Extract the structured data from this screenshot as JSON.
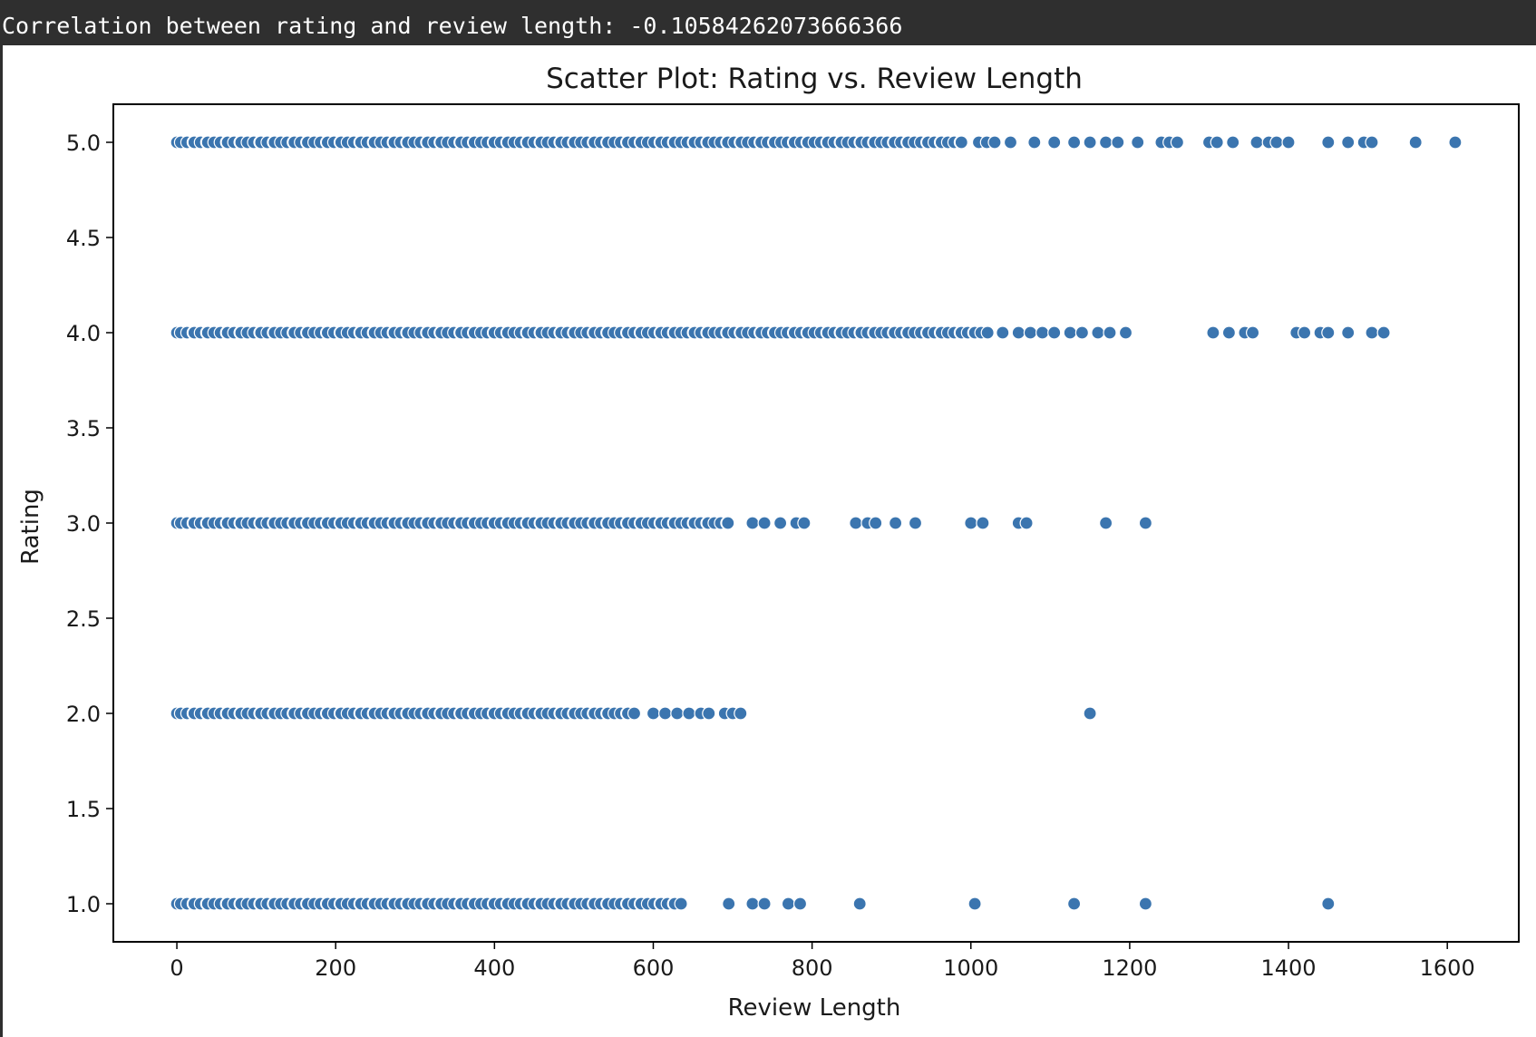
{
  "console": {
    "output_line": "Correlation between rating and review length: -0.10584262073666366"
  },
  "colors": {
    "console_bg": "#2f2f2f",
    "console_text": "#ffffff",
    "marker": "#3b75af",
    "marker_edge": "#ffffff"
  },
  "chart_data": {
    "type": "scatter",
    "title": "Scatter Plot: Rating vs. Review Length",
    "xlabel": "Review Length",
    "ylabel": "Rating",
    "xlim": [
      -80,
      1690
    ],
    "ylim": [
      0.8,
      5.2
    ],
    "x_ticks": [
      0,
      200,
      400,
      600,
      800,
      1000,
      1200,
      1400,
      1600
    ],
    "y_ticks": [
      1.0,
      1.5,
      2.0,
      2.5,
      3.0,
      3.5,
      4.0,
      4.5,
      5.0
    ],
    "x_tick_labels": [
      "0",
      "200",
      "400",
      "600",
      "800",
      "1000",
      "1200",
      "1400",
      "1600"
    ],
    "y_tick_labels": [
      "1.0",
      "1.5",
      "2.0",
      "2.5",
      "3.0",
      "3.5",
      "4.0",
      "4.5",
      "5.0"
    ],
    "grid": false,
    "legend": "none",
    "series": [
      {
        "rating": 5,
        "dense_range": [
          0,
          990
        ],
        "x": [
          1010,
          1020,
          1030,
          1050,
          1080,
          1105,
          1130,
          1150,
          1170,
          1185,
          1210,
          1240,
          1250,
          1260,
          1300,
          1310,
          1330,
          1360,
          1375,
          1385,
          1400,
          1450,
          1475,
          1495,
          1505,
          1560,
          1610
        ]
      },
      {
        "rating": 4,
        "dense_range": [
          0,
          1020
        ],
        "x": [
          1040,
          1060,
          1075,
          1090,
          1105,
          1125,
          1140,
          1160,
          1175,
          1195,
          1305,
          1325,
          1345,
          1355,
          1410,
          1420,
          1440,
          1450,
          1475,
          1505,
          1520
        ]
      },
      {
        "rating": 3,
        "dense_range": [
          0,
          700
        ],
        "x": [
          725,
          740,
          760,
          780,
          790,
          855,
          870,
          880,
          905,
          930,
          1000,
          1015,
          1060,
          1070,
          1170,
          1220
        ]
      },
      {
        "rating": 2,
        "dense_range": [
          0,
          580
        ],
        "x": [
          600,
          615,
          630,
          645,
          660,
          670,
          690,
          700,
          710,
          1150
        ]
      },
      {
        "rating": 1,
        "dense_range": [
          0,
          640
        ],
        "x": [
          695,
          725,
          740,
          770,
          785,
          860,
          1005,
          1130,
          1220,
          1450
        ]
      }
    ]
  }
}
